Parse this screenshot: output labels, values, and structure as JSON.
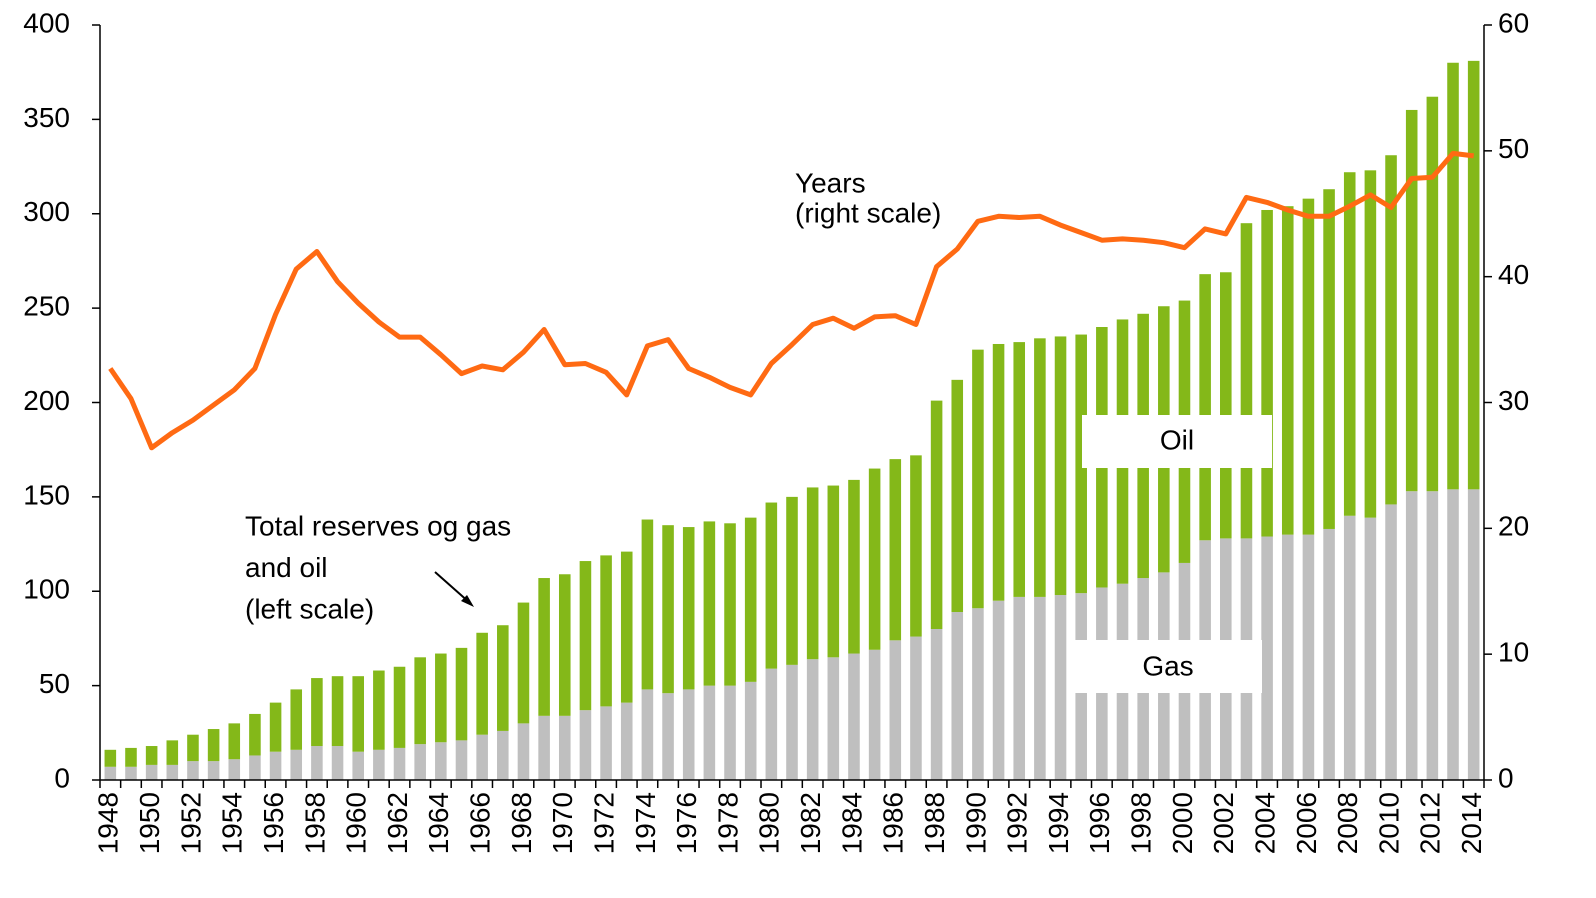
{
  "chart_data": {
    "type": "bar",
    "categories": [
      1948,
      null,
      1950,
      null,
      1952,
      null,
      1954,
      null,
      1956,
      null,
      1958,
      null,
      1960,
      null,
      1962,
      null,
      1964,
      null,
      1966,
      null,
      1968,
      null,
      1970,
      null,
      1972,
      null,
      1974,
      null,
      1976,
      null,
      1978,
      null,
      1980,
      null,
      1982,
      null,
      1984,
      null,
      1986,
      null,
      1988,
      null,
      1990,
      null,
      1992,
      null,
      1994,
      null,
      1996,
      null,
      1998,
      null,
      2000,
      null,
      2002,
      null,
      2004,
      null,
      2006,
      null,
      2008,
      null,
      2010,
      null,
      2012,
      null,
      2014
    ],
    "stacked": true,
    "series": [
      {
        "name": "Gas",
        "color": "#bfbfbf",
        "type": "bar",
        "values": [
          7,
          7,
          8,
          8,
          10,
          10,
          11,
          13,
          15,
          16,
          18,
          18,
          15,
          16,
          17,
          19,
          20,
          21,
          24,
          26,
          30,
          34,
          34,
          37,
          39,
          41,
          48,
          46,
          48,
          50,
          50,
          52,
          59,
          61,
          64,
          65,
          67,
          69,
          74,
          76,
          80,
          89,
          91,
          95,
          97,
          97,
          98,
          99,
          102,
          104,
          107,
          110,
          115,
          127,
          128,
          128,
          129,
          130,
          130,
          133,
          140,
          139,
          146,
          153,
          153,
          154,
          154
        ]
      },
      {
        "name": "Oil",
        "color": "#84b819",
        "type": "bar",
        "values": [
          9,
          10,
          10,
          13,
          14,
          17,
          19,
          22,
          26,
          32,
          36,
          37,
          40,
          42,
          43,
          46,
          47,
          49,
          54,
          56,
          64,
          73,
          75,
          79,
          80,
          80,
          90,
          89,
          86,
          87,
          86,
          87,
          88,
          89,
          91,
          91,
          92,
          96,
          96,
          96,
          121,
          123,
          137,
          136,
          135,
          137,
          137,
          137,
          138,
          140,
          140,
          141,
          139,
          141,
          141,
          167,
          173,
          174,
          178,
          180,
          182,
          184,
          185,
          202,
          209,
          226,
          227
        ]
      },
      {
        "name": "Years",
        "color": "#ff6a13",
        "type": "line",
        "axis": "y2",
        "values": [
          32.7,
          30.3,
          26.4,
          27.6,
          28.6,
          29.8,
          31.0,
          32.7,
          37.0,
          40.6,
          42.0,
          39.6,
          37.9,
          36.4,
          35.2,
          35.2,
          33.8,
          32.3,
          32.9,
          32.6,
          34.0,
          35.8,
          33.0,
          33.1,
          32.4,
          30.6,
          34.5,
          35.0,
          32.7,
          32.0,
          31.2,
          30.6,
          33.1,
          34.6,
          36.2,
          36.7,
          35.9,
          36.8,
          36.9,
          36.2,
          40.8,
          42.2,
          44.4,
          44.8,
          44.7,
          44.8,
          44.1,
          43.5,
          42.9,
          43.0,
          42.9,
          42.7,
          42.3,
          43.8,
          43.4,
          46.3,
          45.9,
          45.3,
          44.8,
          44.8,
          45.6,
          46.5,
          45.5,
          47.8,
          47.9,
          49.8,
          49.6
        ]
      }
    ],
    "ylim": [
      0,
      400
    ],
    "yticks": [
      0,
      50,
      100,
      150,
      200,
      250,
      300,
      350,
      400
    ],
    "y2lim": [
      0,
      60
    ],
    "y2ticks": [
      0,
      10,
      20,
      30,
      40,
      50,
      60
    ],
    "annotations": [
      {
        "lines": [
          "(right scale)"
        ]
      },
      {
        "lines": [
          "Total reserves og gas",
          "and oil",
          "(left scale)"
        ]
      }
    ]
  }
}
